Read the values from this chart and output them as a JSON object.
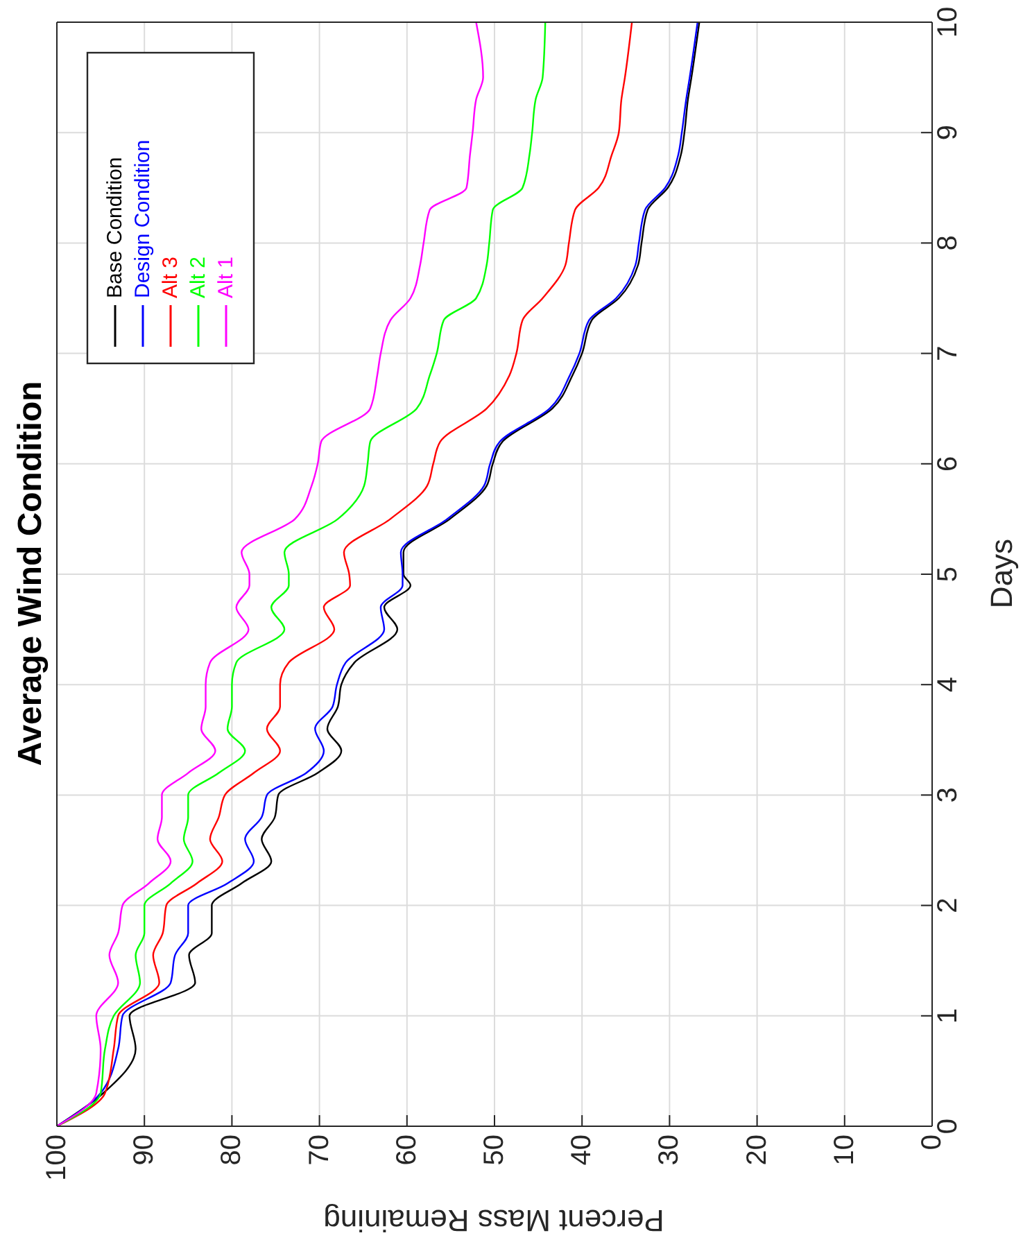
{
  "chart_data": {
    "type": "line",
    "title": "Average Wind Condition",
    "xlabel": "Percent Mass Remaining",
    "ylabel": "Days",
    "series": [
      {
        "name": "Base Condition",
        "color": "#000000",
        "x": [
          100,
          94.7,
          91,
          91.7,
          84.2,
          84.9,
          82.3,
          82.3,
          78.9,
          75.5,
          76.6,
          75.1,
          74.7,
          70.2,
          67.5,
          69.1,
          67.9,
          67.5,
          66,
          61.1,
          62.6,
          59.6,
          60.4,
          60.4,
          55.1,
          50.9,
          50.2,
          49.1,
          43.4,
          41.1,
          40,
          38.9,
          35.8,
          33.6,
          33.2,
          32.5,
          30.2,
          28.7,
          28.3,
          27.9,
          27.5,
          26.6
        ],
        "values": [
          0,
          0.3,
          0.7,
          1,
          1.3,
          1.55,
          1.75,
          2,
          2.2,
          2.4,
          2.6,
          2.8,
          3,
          3.2,
          3.4,
          3.6,
          3.8,
          4,
          4.2,
          4.5,
          4.7,
          4.9,
          5,
          5.2,
          5.5,
          5.8,
          6,
          6.2,
          6.5,
          6.8,
          7,
          7.3,
          7.5,
          7.8,
          8,
          8.3,
          8.5,
          8.8,
          9,
          9.3,
          9.5,
          10
        ]
      },
      {
        "name": "Design Condition",
        "color": "#0000ff",
        "x": [
          100,
          95,
          93,
          92.5,
          87,
          86.5,
          85,
          85,
          80.5,
          77.5,
          78.5,
          76.6,
          76,
          71.5,
          69.5,
          70.5,
          68.5,
          68,
          67,
          62.6,
          63,
          60.5,
          60.5,
          60.7,
          55.4,
          51.2,
          50.5,
          49.4,
          43.7,
          41.4,
          40.3,
          39.2,
          36.1,
          33.9,
          33.5,
          32.8,
          30.5,
          29,
          28.6,
          28.1,
          27.7,
          26.8
        ],
        "values": [
          0,
          0.3,
          0.7,
          1,
          1.3,
          1.55,
          1.75,
          2,
          2.2,
          2.4,
          2.6,
          2.8,
          3,
          3.2,
          3.4,
          3.6,
          3.8,
          4,
          4.2,
          4.5,
          4.7,
          4.9,
          5,
          5.2,
          5.5,
          5.8,
          6,
          6.2,
          6.5,
          6.8,
          7,
          7.3,
          7.5,
          7.8,
          8,
          8.3,
          8.5,
          8.8,
          9,
          9.3,
          9.5,
          10
        ]
      },
      {
        "name": "Alt 3",
        "color": "#ff0000",
        "x": [
          100,
          94.5,
          93.5,
          93,
          88.3,
          89,
          87.9,
          87.5,
          84,
          81.1,
          82.5,
          81.5,
          80.8,
          77.5,
          74.5,
          76,
          74.5,
          74.5,
          73.5,
          68.3,
          69.5,
          66.5,
          66.6,
          67.2,
          61.9,
          57.7,
          57,
          56.2,
          50.9,
          48.3,
          47.5,
          46.8,
          44.5,
          41.9,
          41.5,
          40.8,
          38.1,
          36.6,
          35.8,
          35.5,
          35.1,
          34.3
        ],
        "values": [
          0,
          0.3,
          0.7,
          1,
          1.3,
          1.55,
          1.75,
          2,
          2.2,
          2.4,
          2.6,
          2.8,
          3,
          3.2,
          3.4,
          3.6,
          3.8,
          4,
          4.2,
          4.5,
          4.7,
          4.9,
          5,
          5.2,
          5.5,
          5.8,
          6,
          6.2,
          6.5,
          6.8,
          7,
          7.3,
          7.5,
          7.8,
          8,
          8.3,
          8.5,
          8.8,
          9,
          9.3,
          9.5,
          10
        ]
      },
      {
        "name": "Alt 2",
        "color": "#00ff00",
        "x": [
          100,
          95,
          94.5,
          93.5,
          90.5,
          91,
          90,
          90,
          87,
          84.5,
          85.5,
          85,
          85,
          81.5,
          78.5,
          80.5,
          80,
          80,
          79.5,
          74,
          75.5,
          73.5,
          73.5,
          74,
          67.9,
          64.9,
          64.5,
          64.2,
          58.9,
          57.4,
          56.6,
          55.8,
          52.1,
          50.9,
          50.6,
          50.2,
          46.8,
          46,
          45.7,
          45.3,
          44.5,
          44.2
        ],
        "values": [
          0,
          0.3,
          0.7,
          1,
          1.3,
          1.55,
          1.75,
          2,
          2.2,
          2.4,
          2.6,
          2.8,
          3,
          3.2,
          3.4,
          3.6,
          3.8,
          4,
          4.2,
          4.5,
          4.7,
          4.9,
          5,
          5.2,
          5.5,
          5.8,
          6,
          6.2,
          6.5,
          6.8,
          7,
          7.3,
          7.5,
          7.8,
          8,
          8.3,
          8.5,
          8.8,
          9,
          9.3,
          9.5,
          10
        ]
      },
      {
        "name": "Alt 1",
        "color": "#ff00ff",
        "x": [
          100,
          95.5,
          95,
          95.5,
          93,
          94,
          93,
          92.5,
          89.5,
          87,
          88.5,
          88,
          88,
          85,
          81.9,
          83.5,
          83,
          83,
          82.5,
          78.1,
          79.5,
          78,
          78,
          78.9,
          72.8,
          70.9,
          70.2,
          69.8,
          64.2,
          63.4,
          63,
          61.9,
          59.6,
          58.5,
          58.1,
          57.4,
          53.2,
          52.8,
          52.5,
          52.1,
          51.3,
          52.1
        ],
        "values": [
          0,
          0.3,
          0.7,
          1,
          1.3,
          1.55,
          1.75,
          2,
          2.2,
          2.4,
          2.6,
          2.8,
          3,
          3.2,
          3.4,
          3.6,
          3.8,
          4,
          4.2,
          4.5,
          4.7,
          4.9,
          5,
          5.2,
          5.5,
          5.8,
          6,
          6.2,
          6.5,
          6.8,
          7,
          7.3,
          7.5,
          7.8,
          8,
          8.3,
          8.5,
          8.8,
          9,
          9.3,
          9.5,
          10
        ]
      }
    ],
    "xlim": [
      100,
      0
    ],
    "xticks": [
      100,
      90,
      80,
      70,
      60,
      50,
      40,
      30,
      20,
      10,
      0
    ],
    "ylim": [
      0,
      10
    ],
    "yticks": [
      0,
      1,
      2,
      3,
      4,
      5,
      6,
      7,
      8,
      9,
      10
    ],
    "grid": true,
    "legend": "top left",
    "marker": "none",
    "line_style": "solid"
  }
}
